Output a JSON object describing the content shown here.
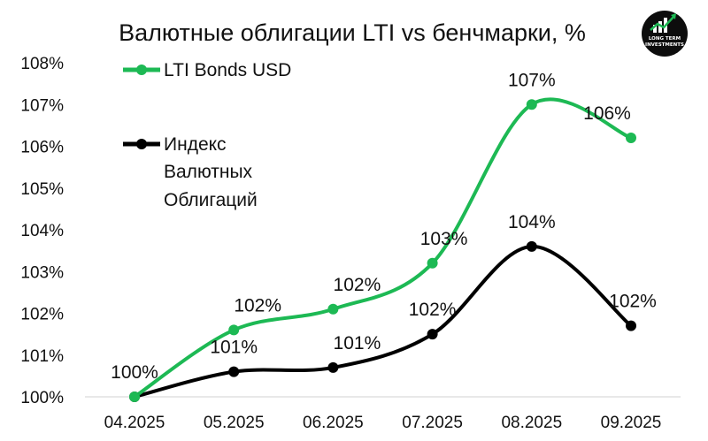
{
  "chart_data": {
    "type": "line",
    "title": "Валютные облигации LTI vs бенчмарки, %",
    "xlabel": "",
    "ylabel": "",
    "categories": [
      "04.2025",
      "05.2025",
      "06.2025",
      "07.2025",
      "08.2025",
      "09.2025"
    ],
    "ylim": [
      100,
      108
    ],
    "yticks": [
      "100%",
      "101%",
      "102%",
      "103%",
      "104%",
      "105%",
      "106%",
      "107%",
      "108%"
    ],
    "grid": false,
    "smooth": true,
    "legend_position": "top-left",
    "series": [
      {
        "name": "LTI Bonds USD",
        "color": "#1db954",
        "values": [
          100.0,
          101.6,
          102.1,
          103.2,
          107.0,
          106.2
        ],
        "labels": [
          "",
          "102%",
          "102%",
          "103%",
          "107%",
          "106%"
        ]
      },
      {
        "name": "Индекс Валютных Облигаций",
        "color": "#000000",
        "values": [
          100.0,
          100.6,
          100.7,
          101.5,
          103.6,
          101.7
        ],
        "labels": [
          "100%",
          "101%",
          "101%",
          "102%",
          "104%",
          "102%"
        ]
      }
    ]
  },
  "legend": {
    "green_label": "LTI Bonds USD",
    "black_label_lines": [
      "Индекс",
      "Валютных",
      "Облигаций"
    ]
  },
  "logo": {
    "text_lines": [
      "LONG TERM",
      "INVESTMENTS"
    ],
    "icon": "rising-bars-icon"
  }
}
